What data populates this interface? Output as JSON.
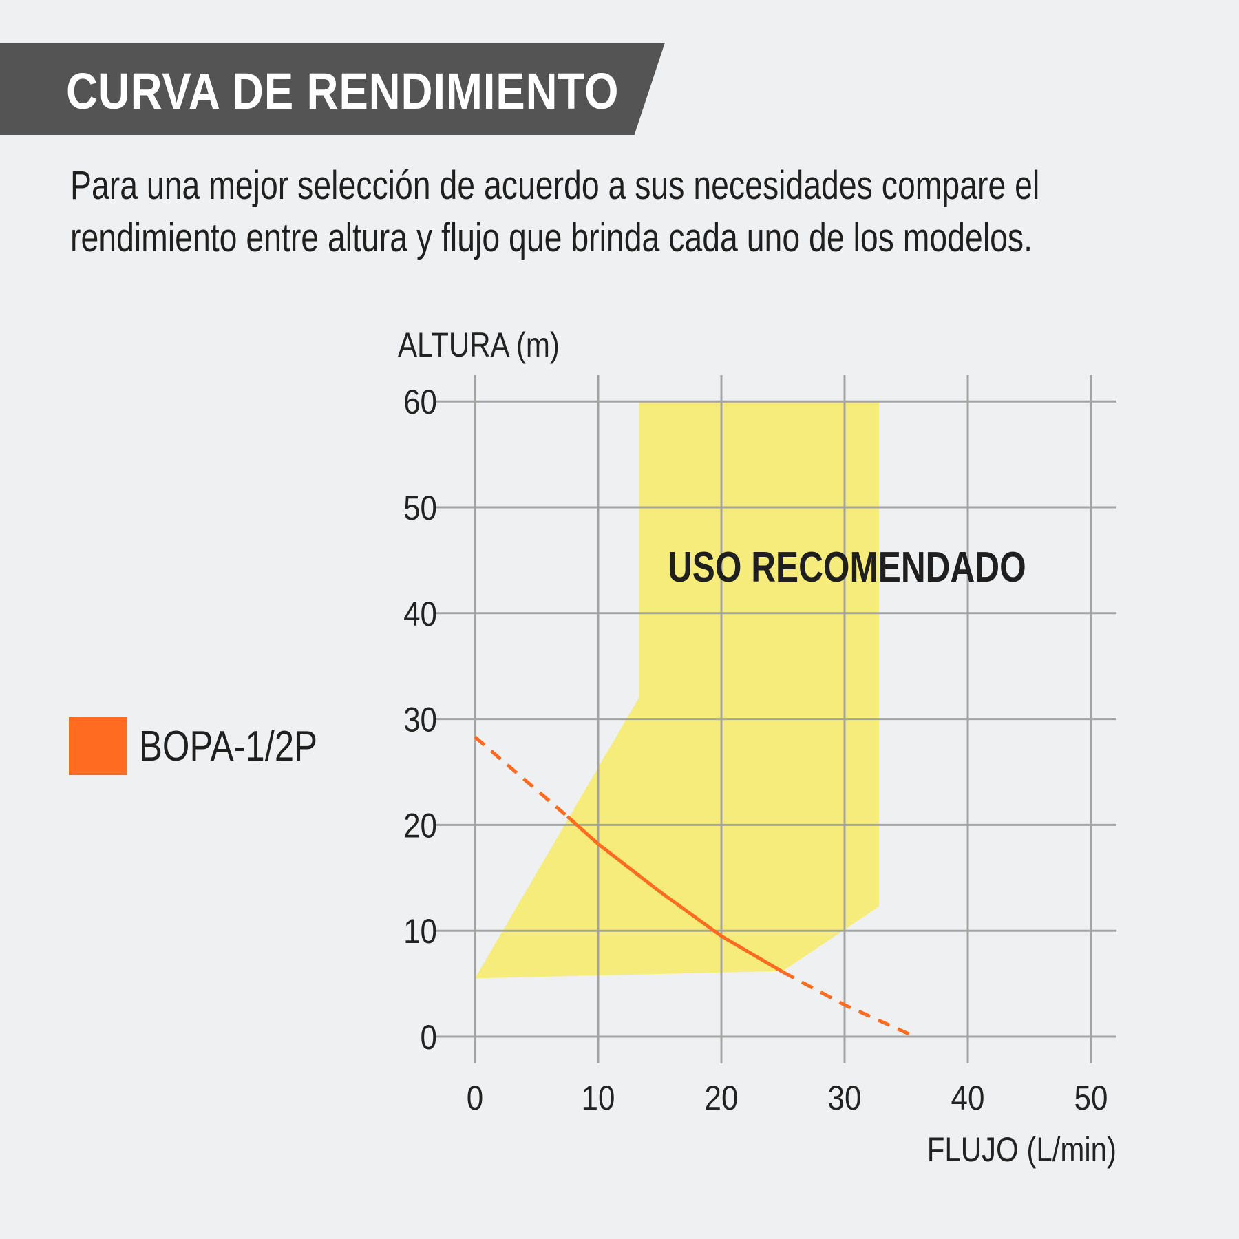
{
  "header": {
    "title": "CURVA DE RENDIMIENTO"
  },
  "intro": {
    "text": "Para una mejor selección de acuerdo a sus necesidades compare el rendimiento entre altura y flujo que brinda cada uno de los modelos."
  },
  "legend": {
    "label": "BOPA-1/2P",
    "color": "#ff6b21"
  },
  "chart_data": {
    "type": "line",
    "ylabel": "ALTURA (m)",
    "xlabel": "FLUJO (L/min)",
    "xlim": [
      0,
      50
    ],
    "ylim": [
      0,
      60
    ],
    "xticks": [
      "0",
      "10",
      "20",
      "30",
      "40",
      "50"
    ],
    "yticks": [
      "0",
      "10",
      "20",
      "30",
      "40",
      "50",
      "60"
    ],
    "grid": true,
    "recommended_region": {
      "label": "USO RECOMENDADO",
      "color": "#f6ec7c",
      "polygon": [
        [
          0,
          5.5
        ],
        [
          13.3,
          32
        ],
        [
          13.3,
          60
        ],
        [
          32.8,
          60
        ],
        [
          32.8,
          12.3
        ],
        [
          25,
          6.2
        ]
      ]
    },
    "series": [
      {
        "name": "BOPA-1/2P",
        "color": "#ff6b21",
        "x": [
          0,
          7.5,
          10,
          15,
          20,
          25,
          30,
          35.7
        ],
        "y": [
          28.3,
          20.8,
          18.2,
          13.7,
          9.5,
          6.1,
          3.0,
          0
        ],
        "dashed_x_ranges": [
          [
            0,
            7.5
          ],
          [
            25,
            35.7
          ]
        ]
      }
    ]
  }
}
